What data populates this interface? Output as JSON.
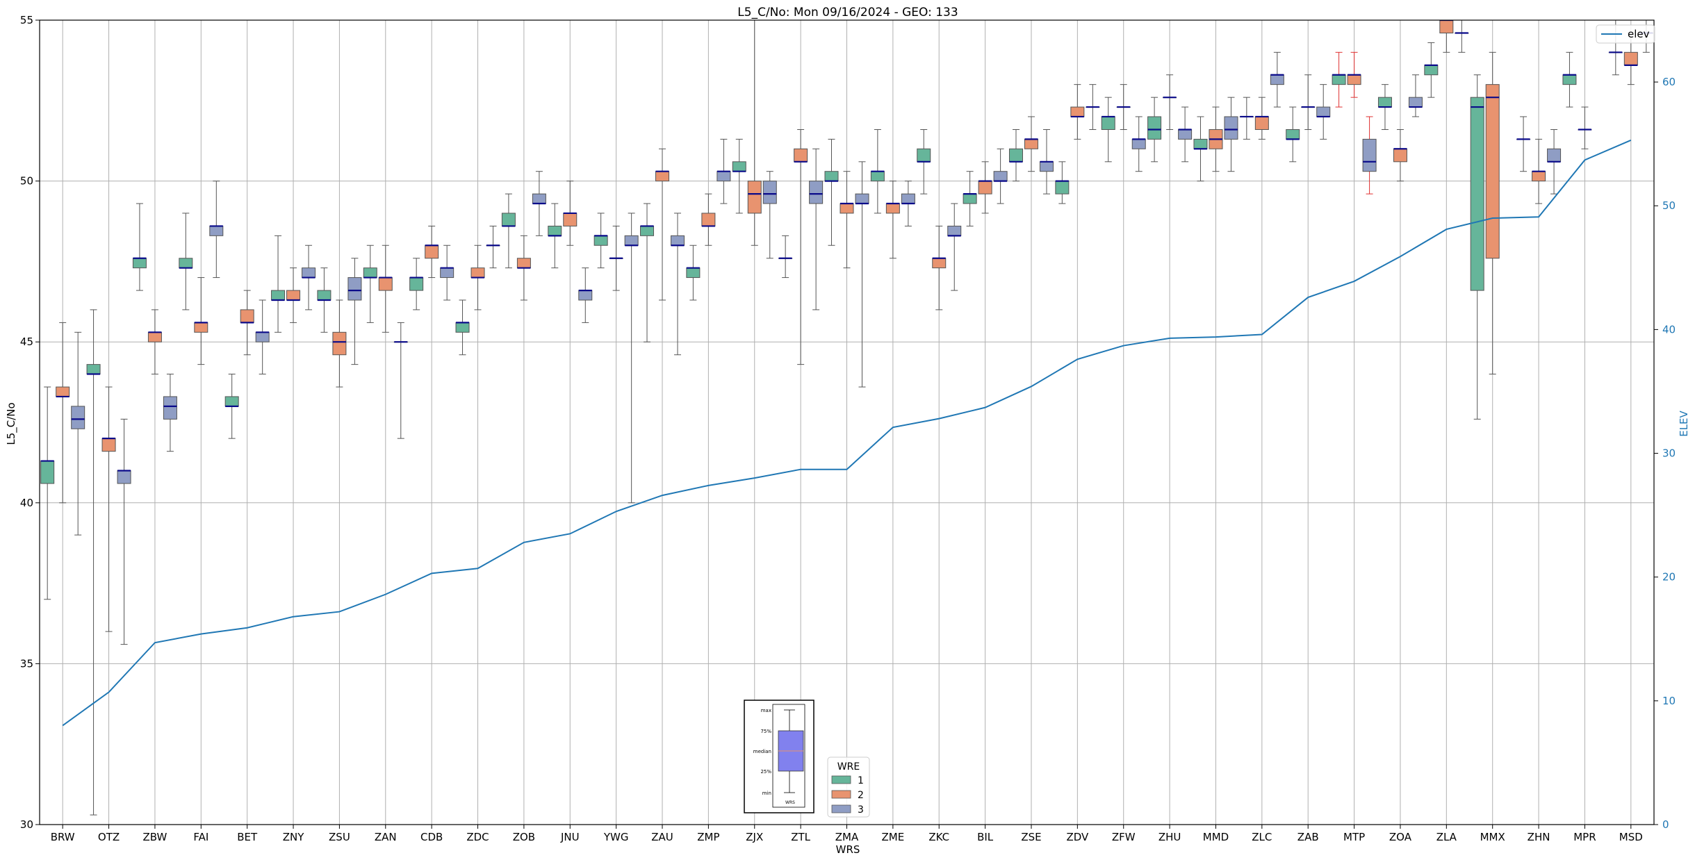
{
  "chart_data": {
    "type": "box",
    "title": "L5_C/No: Mon 09/16/2024 - GEO: 133",
    "xlabel": "WRS",
    "ylabel": "L5_C/No",
    "y2label": "ELEV",
    "ylim": [
      30,
      55
    ],
    "y2lim": [
      0,
      65
    ],
    "yticks": [
      30,
      35,
      40,
      45,
      50,
      55
    ],
    "y2ticks": [
      0,
      10,
      20,
      30,
      40,
      50,
      60
    ],
    "grid": true,
    "categories": [
      "BRW",
      "OTZ",
      "ZBW",
      "FAI",
      "BET",
      "ZNY",
      "ZSU",
      "ZAN",
      "CDB",
      "ZDC",
      "ZOB",
      "JNU",
      "YWG",
      "ZAU",
      "ZMP",
      "ZJX",
      "ZTL",
      "ZMA",
      "ZME",
      "ZKC",
      "BIL",
      "ZSE",
      "ZDV",
      "ZFW",
      "ZHU",
      "MMD",
      "ZLC",
      "ZAB",
      "MTP",
      "ZOA",
      "ZLA",
      "MMX",
      "ZHN",
      "MPR",
      "MSD"
    ],
    "wre_colors": {
      "1": "#66b59a",
      "2": "#e8936f",
      "3": "#8f9dc4"
    },
    "median_color": "#0a0a8a",
    "elev_color": "#1f77b4",
    "legend": {
      "title": "WRE",
      "entries": [
        "1",
        "2",
        "3"
      ],
      "placement": "lower-center"
    },
    "elev_legend": {
      "label": "elev",
      "placement": "top-right"
    },
    "key_inset": {
      "labels": [
        "max",
        "75%",
        "median",
        "25%",
        "min"
      ],
      "xlabel": "WRS"
    },
    "boxes": [
      {
        "wrs": "BRW",
        "wre": 1,
        "min": 37.0,
        "q1": 40.6,
        "med": 41.3,
        "q3": 41.3,
        "max": 43.6
      },
      {
        "wrs": "BRW",
        "wre": 2,
        "min": 40.0,
        "q1": 43.3,
        "med": 43.3,
        "q3": 43.6,
        "max": 45.6
      },
      {
        "wrs": "BRW",
        "wre": 3,
        "min": 39.0,
        "q1": 42.3,
        "med": 42.6,
        "q3": 43.0,
        "max": 45.3
      },
      {
        "wrs": "OTZ",
        "wre": 1,
        "min": 30.3,
        "q1": 44.0,
        "med": 44.0,
        "q3": 44.3,
        "max": 46.0
      },
      {
        "wrs": "OTZ",
        "wre": 2,
        "min": 36.0,
        "q1": 41.6,
        "med": 42.0,
        "q3": 42.0,
        "max": 43.6
      },
      {
        "wrs": "OTZ",
        "wre": 3,
        "min": 35.6,
        "q1": 40.6,
        "med": 41.0,
        "q3": 41.0,
        "max": 42.6
      },
      {
        "wrs": "ZBW",
        "wre": 1,
        "min": 46.6,
        "q1": 47.3,
        "med": 47.6,
        "q3": 47.6,
        "max": 49.3
      },
      {
        "wrs": "ZBW",
        "wre": 2,
        "min": 44.0,
        "q1": 45.0,
        "med": 45.3,
        "q3": 45.3,
        "max": 46.0
      },
      {
        "wrs": "ZBW",
        "wre": 3,
        "min": 41.6,
        "q1": 42.6,
        "med": 43.0,
        "q3": 43.3,
        "max": 44.0
      },
      {
        "wrs": "FAI",
        "wre": 1,
        "min": 46.0,
        "q1": 47.3,
        "med": 47.3,
        "q3": 47.6,
        "max": 49.0
      },
      {
        "wrs": "FAI",
        "wre": 2,
        "min": 44.3,
        "q1": 45.3,
        "med": 45.6,
        "q3": 45.6,
        "max": 47.0
      },
      {
        "wrs": "FAI",
        "wre": 3,
        "min": 47.0,
        "q1": 48.3,
        "med": 48.6,
        "q3": 48.6,
        "max": 50.0
      },
      {
        "wrs": "BET",
        "wre": 1,
        "min": 42.0,
        "q1": 43.0,
        "med": 43.0,
        "q3": 43.3,
        "max": 44.0
      },
      {
        "wrs": "BET",
        "wre": 2,
        "min": 44.6,
        "q1": 45.6,
        "med": 45.6,
        "q3": 46.0,
        "max": 46.6
      },
      {
        "wrs": "BET",
        "wre": 3,
        "min": 44.0,
        "q1": 45.0,
        "med": 45.3,
        "q3": 45.3,
        "max": 46.3
      },
      {
        "wrs": "ZNY",
        "wre": 1,
        "min": 45.3,
        "q1": 46.3,
        "med": 46.3,
        "q3": 46.6,
        "max": 48.3
      },
      {
        "wrs": "ZNY",
        "wre": 2,
        "min": 45.6,
        "q1": 46.3,
        "med": 46.3,
        "q3": 46.6,
        "max": 47.3
      },
      {
        "wrs": "ZNY",
        "wre": 3,
        "min": 46.0,
        "q1": 47.0,
        "med": 47.0,
        "q3": 47.3,
        "max": 48.0
      },
      {
        "wrs": "ZSU",
        "wre": 1,
        "min": 45.3,
        "q1": 46.3,
        "med": 46.3,
        "q3": 46.6,
        "max": 47.3
      },
      {
        "wrs": "ZSU",
        "wre": 2,
        "min": 43.6,
        "q1": 44.6,
        "med": 45.0,
        "q3": 45.3,
        "max": 46.3
      },
      {
        "wrs": "ZSU",
        "wre": 3,
        "min": 44.3,
        "q1": 46.3,
        "med": 46.6,
        "q3": 47.0,
        "max": 47.6
      },
      {
        "wrs": "ZAN",
        "wre": 1,
        "min": 45.6,
        "q1": 47.0,
        "med": 47.0,
        "q3": 47.3,
        "max": 48.0
      },
      {
        "wrs": "ZAN",
        "wre": 2,
        "min": 45.3,
        "q1": 46.6,
        "med": 47.0,
        "q3": 47.0,
        "max": 48.0
      },
      {
        "wrs": "ZAN",
        "wre": 3,
        "min": 42.0,
        "q1": 45.0,
        "med": 45.0,
        "q3": 45.0,
        "max": 45.6
      },
      {
        "wrs": "CDB",
        "wre": 1,
        "min": 46.0,
        "q1": 46.6,
        "med": 47.0,
        "q3": 47.0,
        "max": 47.6
      },
      {
        "wrs": "CDB",
        "wre": 2,
        "min": 47.0,
        "q1": 47.6,
        "med": 48.0,
        "q3": 48.0,
        "max": 48.6
      },
      {
        "wrs": "CDB",
        "wre": 3,
        "min": 46.3,
        "q1": 47.0,
        "med": 47.3,
        "q3": 47.3,
        "max": 48.0
      },
      {
        "wrs": "ZDC",
        "wre": 1,
        "min": 44.6,
        "q1": 45.3,
        "med": 45.6,
        "q3": 45.6,
        "max": 46.3
      },
      {
        "wrs": "ZDC",
        "wre": 2,
        "min": 46.0,
        "q1": 47.0,
        "med": 47.0,
        "q3": 47.3,
        "max": 48.0
      },
      {
        "wrs": "ZDC",
        "wre": 3,
        "min": 47.3,
        "q1": 48.0,
        "med": 48.0,
        "q3": 48.0,
        "max": 48.6
      },
      {
        "wrs": "ZOB",
        "wre": 1,
        "min": 47.3,
        "q1": 48.6,
        "med": 48.6,
        "q3": 49.0,
        "max": 49.6
      },
      {
        "wrs": "ZOB",
        "wre": 2,
        "min": 46.3,
        "q1": 47.3,
        "med": 47.3,
        "q3": 47.6,
        "max": 48.3
      },
      {
        "wrs": "ZOB",
        "wre": 3,
        "min": 48.3,
        "q1": 49.3,
        "med": 49.3,
        "q3": 49.6,
        "max": 50.3
      },
      {
        "wrs": "JNU",
        "wre": 1,
        "min": 47.3,
        "q1": 48.3,
        "med": 48.3,
        "q3": 48.6,
        "max": 49.3
      },
      {
        "wrs": "JNU",
        "wre": 2,
        "min": 48.0,
        "q1": 48.6,
        "med": 49.0,
        "q3": 49.0,
        "max": 50.0
      },
      {
        "wrs": "JNU",
        "wre": 3,
        "min": 45.6,
        "q1": 46.3,
        "med": 46.6,
        "q3": 46.6,
        "max": 47.3
      },
      {
        "wrs": "YWG",
        "wre": 1,
        "min": 47.3,
        "q1": 48.0,
        "med": 48.3,
        "q3": 48.3,
        "max": 49.0
      },
      {
        "wrs": "YWG",
        "wre": 2,
        "min": 46.6,
        "q1": 47.6,
        "med": 47.6,
        "q3": 47.6,
        "max": 48.6
      },
      {
        "wrs": "YWG",
        "wre": 3,
        "min": 40.0,
        "q1": 48.0,
        "med": 48.0,
        "q3": 48.3,
        "max": 49.0
      },
      {
        "wrs": "ZAU",
        "wre": 1,
        "min": 45.0,
        "q1": 48.3,
        "med": 48.6,
        "q3": 48.6,
        "max": 49.3
      },
      {
        "wrs": "ZAU",
        "wre": 2,
        "min": 46.3,
        "q1": 50.0,
        "med": 50.3,
        "q3": 50.3,
        "max": 51.0
      },
      {
        "wrs": "ZAU",
        "wre": 3,
        "min": 44.6,
        "q1": 48.0,
        "med": 48.0,
        "q3": 48.3,
        "max": 49.0
      },
      {
        "wrs": "ZMP",
        "wre": 1,
        "min": 46.3,
        "q1": 47.0,
        "med": 47.3,
        "q3": 47.3,
        "max": 48.0
      },
      {
        "wrs": "ZMP",
        "wre": 2,
        "min": 48.0,
        "q1": 48.6,
        "med": 48.6,
        "q3": 49.0,
        "max": 49.6
      },
      {
        "wrs": "ZMP",
        "wre": 3,
        "min": 49.3,
        "q1": 50.0,
        "med": 50.3,
        "q3": 50.3,
        "max": 51.3
      },
      {
        "wrs": "ZJX",
        "wre": 1,
        "min": 49.0,
        "q1": 50.3,
        "med": 50.3,
        "q3": 50.6,
        "max": 51.3
      },
      {
        "wrs": "ZJX",
        "wre": 2,
        "min": 48.0,
        "q1": 49.0,
        "med": 49.6,
        "q3": 50.0,
        "max": 55.0
      },
      {
        "wrs": "ZJX",
        "wre": 3,
        "min": 47.6,
        "q1": 49.3,
        "med": 49.6,
        "q3": 50.0,
        "max": 50.3
      },
      {
        "wrs": "ZTL",
        "wre": 1,
        "min": 47.0,
        "q1": 47.6,
        "med": 47.6,
        "q3": 47.6,
        "max": 48.3
      },
      {
        "wrs": "ZTL",
        "wre": 2,
        "min": 44.3,
        "q1": 50.6,
        "med": 50.6,
        "q3": 51.0,
        "max": 51.6
      },
      {
        "wrs": "ZTL",
        "wre": 3,
        "min": 46.0,
        "q1": 49.3,
        "med": 49.6,
        "q3": 50.0,
        "max": 51.0
      },
      {
        "wrs": "ZMA",
        "wre": 1,
        "min": 48.0,
        "q1": 50.0,
        "med": 50.0,
        "q3": 50.3,
        "max": 51.3
      },
      {
        "wrs": "ZMA",
        "wre": 2,
        "min": 47.3,
        "q1": 49.0,
        "med": 49.3,
        "q3": 49.3,
        "max": 50.3
      },
      {
        "wrs": "ZMA",
        "wre": 3,
        "min": 43.6,
        "q1": 49.3,
        "med": 49.3,
        "q3": 49.6,
        "max": 50.6
      },
      {
        "wrs": "ZME",
        "wre": 1,
        "min": 49.0,
        "q1": 50.0,
        "med": 50.3,
        "q3": 50.3,
        "max": 51.6
      },
      {
        "wrs": "ZME",
        "wre": 2,
        "min": 47.6,
        "q1": 49.0,
        "med": 49.3,
        "q3": 49.3,
        "max": 50.0
      },
      {
        "wrs": "ZME",
        "wre": 3,
        "min": 48.6,
        "q1": 49.3,
        "med": 49.3,
        "q3": 49.6,
        "max": 50.0
      },
      {
        "wrs": "ZKC",
        "wre": 1,
        "min": 49.6,
        "q1": 50.6,
        "med": 50.6,
        "q3": 51.0,
        "max": 51.6
      },
      {
        "wrs": "ZKC",
        "wre": 2,
        "min": 46.0,
        "q1": 47.3,
        "med": 47.6,
        "q3": 47.6,
        "max": 48.6
      },
      {
        "wrs": "ZKC",
        "wre": 3,
        "min": 46.6,
        "q1": 48.3,
        "med": 48.3,
        "q3": 48.6,
        "max": 49.3
      },
      {
        "wrs": "BIL",
        "wre": 1,
        "min": 48.6,
        "q1": 49.3,
        "med": 49.6,
        "q3": 49.6,
        "max": 50.3
      },
      {
        "wrs": "BIL",
        "wre": 2,
        "min": 49.0,
        "q1": 49.6,
        "med": 50.0,
        "q3": 50.0,
        "max": 50.6
      },
      {
        "wrs": "BIL",
        "wre": 3,
        "min": 49.3,
        "q1": 50.0,
        "med": 50.0,
        "q3": 50.3,
        "max": 51.0
      },
      {
        "wrs": "ZSE",
        "wre": 1,
        "min": 50.0,
        "q1": 50.6,
        "med": 50.6,
        "q3": 51.0,
        "max": 51.6
      },
      {
        "wrs": "ZSE",
        "wre": 2,
        "min": 50.3,
        "q1": 51.0,
        "med": 51.3,
        "q3": 51.3,
        "max": 52.0
      },
      {
        "wrs": "ZSE",
        "wre": 3,
        "min": 49.6,
        "q1": 50.3,
        "med": 50.6,
        "q3": 50.6,
        "max": 51.6
      },
      {
        "wrs": "ZDV",
        "wre": 1,
        "min": 49.3,
        "q1": 49.6,
        "med": 50.0,
        "q3": 50.0,
        "max": 50.6
      },
      {
        "wrs": "ZDV",
        "wre": 2,
        "min": 51.3,
        "q1": 52.0,
        "med": 52.0,
        "q3": 52.3,
        "max": 53.0
      },
      {
        "wrs": "ZDV",
        "wre": 3,
        "min": 51.6,
        "q1": 52.3,
        "med": 52.3,
        "q3": 52.3,
        "max": 53.0
      },
      {
        "wrs": "ZFW",
        "wre": 1,
        "min": 50.6,
        "q1": 51.6,
        "med": 52.0,
        "q3": 52.0,
        "max": 52.6
      },
      {
        "wrs": "ZFW",
        "wre": 2,
        "min": 51.6,
        "q1": 52.3,
        "med": 52.3,
        "q3": 52.3,
        "max": 53.0
      },
      {
        "wrs": "ZFW",
        "wre": 3,
        "min": 50.3,
        "q1": 51.0,
        "med": 51.3,
        "q3": 51.3,
        "max": 52.0
      },
      {
        "wrs": "ZHU",
        "wre": 1,
        "min": 50.6,
        "q1": 51.3,
        "med": 51.6,
        "q3": 52.0,
        "max": 52.6
      },
      {
        "wrs": "ZHU",
        "wre": 2,
        "min": 51.6,
        "q1": 52.6,
        "med": 52.6,
        "q3": 52.6,
        "max": 53.3
      },
      {
        "wrs": "ZHU",
        "wre": 3,
        "min": 50.6,
        "q1": 51.3,
        "med": 51.6,
        "q3": 51.6,
        "max": 52.3
      },
      {
        "wrs": "MMD",
        "wre": 1,
        "min": 50.0,
        "q1": 51.0,
        "med": 51.0,
        "q3": 51.3,
        "max": 52.0
      },
      {
        "wrs": "MMD",
        "wre": 2,
        "min": 50.3,
        "q1": 51.0,
        "med": 51.3,
        "q3": 51.6,
        "max": 52.3
      },
      {
        "wrs": "MMD",
        "wre": 3,
        "min": 50.3,
        "q1": 51.3,
        "med": 51.6,
        "q3": 52.0,
        "max": 52.6
      },
      {
        "wrs": "ZLC",
        "wre": 1,
        "min": 51.3,
        "q1": 52.0,
        "med": 52.0,
        "q3": 52.0,
        "max": 52.6
      },
      {
        "wrs": "ZLC",
        "wre": 2,
        "min": 51.3,
        "q1": 51.6,
        "med": 52.0,
        "q3": 52.0,
        "max": 52.6
      },
      {
        "wrs": "ZLC",
        "wre": 3,
        "min": 52.3,
        "q1": 53.0,
        "med": 53.3,
        "q3": 53.3,
        "max": 54.0
      },
      {
        "wrs": "ZAB",
        "wre": 1,
        "min": 50.6,
        "q1": 51.3,
        "med": 51.3,
        "q3": 51.6,
        "max": 52.3
      },
      {
        "wrs": "ZAB",
        "wre": 2,
        "min": 51.6,
        "q1": 52.3,
        "med": 52.3,
        "q3": 52.3,
        "max": 53.3
      },
      {
        "wrs": "ZAB",
        "wre": 3,
        "min": 51.3,
        "q1": 52.0,
        "med": 52.0,
        "q3": 52.3,
        "max": 53.0
      },
      {
        "wrs": "MTP",
        "wre": 1,
        "min": 52.3,
        "q1": 53.0,
        "med": 53.3,
        "q3": 53.3,
        "max": 54.0,
        "whisker_color": "#e03030"
      },
      {
        "wrs": "MTP",
        "wre": 2,
        "min": 52.6,
        "q1": 53.0,
        "med": 53.3,
        "q3": 53.3,
        "max": 54.0,
        "whisker_color": "#e03030"
      },
      {
        "wrs": "MTP",
        "wre": 3,
        "min": 49.6,
        "q1": 50.3,
        "med": 50.6,
        "q3": 51.3,
        "max": 52.0,
        "whisker_color": "#e03030"
      },
      {
        "wrs": "ZOA",
        "wre": 1,
        "min": 51.6,
        "q1": 52.3,
        "med": 52.3,
        "q3": 52.6,
        "max": 53.0
      },
      {
        "wrs": "ZOA",
        "wre": 2,
        "min": 50.0,
        "q1": 50.6,
        "med": 51.0,
        "q3": 51.0,
        "max": 51.6
      },
      {
        "wrs": "ZOA",
        "wre": 3,
        "min": 52.0,
        "q1": 52.3,
        "med": 52.3,
        "q3": 52.6,
        "max": 53.3
      },
      {
        "wrs": "ZLA",
        "wre": 1,
        "min": 52.6,
        "q1": 53.3,
        "med": 53.6,
        "q3": 53.6,
        "max": 54.3
      },
      {
        "wrs": "ZLA",
        "wre": 2,
        "min": 54.0,
        "q1": 54.6,
        "med": 55.0,
        "q3": 55.0,
        "max": 55.0
      },
      {
        "wrs": "ZLA",
        "wre": 3,
        "min": 54.0,
        "q1": 54.6,
        "med": 54.6,
        "q3": 54.6,
        "max": 55.0
      },
      {
        "wrs": "MMX",
        "wre": 1,
        "min": 42.6,
        "q1": 46.6,
        "med": 52.3,
        "q3": 52.6,
        "max": 53.3
      },
      {
        "wrs": "MMX",
        "wre": 2,
        "min": 44.0,
        "q1": 47.6,
        "med": 52.6,
        "q3": 53.0,
        "max": 54.0
      },
      {
        "wrs": "ZHN",
        "wre": 1,
        "min": 50.3,
        "q1": 51.3,
        "med": 51.3,
        "q3": 51.3,
        "max": 52.0
      },
      {
        "wrs": "ZHN",
        "wre": 2,
        "min": 49.3,
        "q1": 50.0,
        "med": 50.3,
        "q3": 50.3,
        "max": 51.3
      },
      {
        "wrs": "ZHN",
        "wre": 3,
        "min": 49.6,
        "q1": 50.6,
        "med": 50.6,
        "q3": 51.0,
        "max": 51.6
      },
      {
        "wrs": "MPR",
        "wre": 1,
        "min": 52.3,
        "q1": 53.0,
        "med": 53.3,
        "q3": 53.3,
        "max": 54.0
      },
      {
        "wrs": "MPR",
        "wre": 2,
        "min": 51.0,
        "q1": 51.6,
        "med": 51.6,
        "q3": 51.6,
        "max": 52.3
      },
      {
        "wrs": "MSD",
        "wre": 1,
        "min": 53.3,
        "q1": 54.0,
        "med": 54.0,
        "q3": 54.0,
        "max": 55.0
      },
      {
        "wrs": "MSD",
        "wre": 2,
        "min": 53.0,
        "q1": 53.6,
        "med": 53.6,
        "q3": 54.0,
        "max": 54.6
      },
      {
        "wrs": "MSD",
        "wre": 3,
        "min": 54.0,
        "q1": 54.6,
        "med": 54.6,
        "q3": 54.6,
        "max": 55.0
      }
    ],
    "elev_series": {
      "name": "elev",
      "x": [
        "BRW",
        "OTZ",
        "ZBW",
        "FAI",
        "BET",
        "ZNY",
        "ZSU",
        "ZAN",
        "CDB",
        "ZDC",
        "ZOB",
        "JNU",
        "YWG",
        "ZAU",
        "ZMP",
        "ZJX",
        "ZTL",
        "ZMA",
        "ZME",
        "ZKC",
        "BIL",
        "ZSE",
        "ZDV",
        "ZFW",
        "ZHU",
        "MMD",
        "ZLC",
        "ZAB",
        "MTP",
        "ZOA",
        "ZLA",
        "MMX",
        "ZHN",
        "MPR",
        "MSD"
      ],
      "values": [
        8.0,
        10.7,
        14.7,
        15.4,
        15.9,
        16.8,
        17.2,
        18.6,
        20.3,
        20.7,
        22.8,
        23.5,
        25.3,
        26.6,
        27.4,
        28.0,
        28.7,
        28.7,
        32.1,
        32.8,
        33.7,
        35.4,
        37.6,
        38.7,
        39.3,
        39.4,
        39.6,
        42.6,
        43.9,
        45.9,
        48.1,
        49.0,
        49.1,
        53.7,
        55.3
      ]
    }
  }
}
